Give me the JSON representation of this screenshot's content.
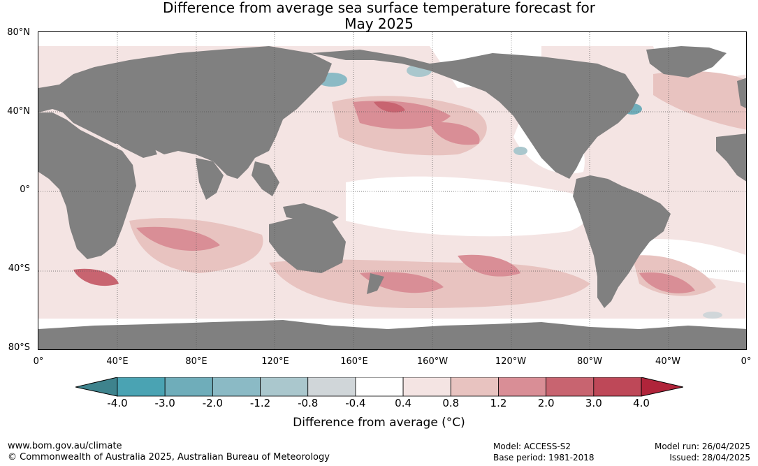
{
  "title_line1": "Difference from average sea surface temperature forecast for",
  "title_line2": "May 2025",
  "lat_labels": [
    "80°N",
    "40°N",
    "0°",
    "40°S",
    "80°S"
  ],
  "lon_labels": [
    "0°",
    "40°E",
    "80°E",
    "120°E",
    "160°E",
    "160°W",
    "120°W",
    "80°W",
    "40°W",
    "0°"
  ],
  "colorbar": {
    "ticks": [
      "-4.0",
      "-3.0",
      "-2.0",
      "-1.2",
      "-0.8",
      "-0.4",
      "0.4",
      "0.8",
      "1.2",
      "2.0",
      "3.0",
      "4.0"
    ],
    "colors": [
      "#4aa3b3",
      "#6fadba",
      "#8bbac5",
      "#aac7cd",
      "#d0d6d9",
      "#ffffff",
      "#f4e4e3",
      "#e8c3c0",
      "#d98e96",
      "#c86470",
      "#be4858"
    ],
    "under_color": "#3e838d",
    "over_color": "#b0243a",
    "label": "Difference from average (°C)"
  },
  "colors": {
    "land": "#808080",
    "gridline": "#555555"
  },
  "footer": {
    "website": "www.bom.gov.au/climate",
    "copyright": "© Commonwealth of Australia 2025, Australian Bureau of Meteorology",
    "model": "Model: ACCESS-S2",
    "base_period": "Base period: 1981-2018",
    "model_run": "Model run: 26/04/2025",
    "issued": "Issued: 28/04/2025"
  }
}
